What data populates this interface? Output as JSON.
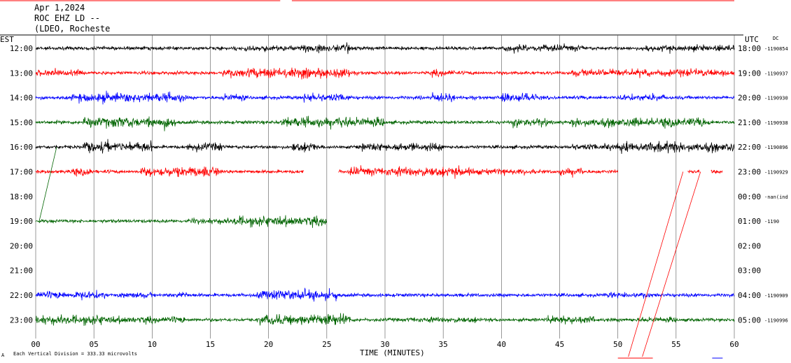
{
  "header": {
    "date": "Apr 1,2024",
    "station": "ROC EHZ LD --",
    "location": "(LDEO, Rocheste"
  },
  "axes": {
    "left_tz": "EST",
    "right_tz": "UTC",
    "dc_label": "DC",
    "x_title": "TIME (MINUTES)",
    "scale_note": "Each Vertical Division = 333.33 microvolts",
    "corner_mark": "A"
  },
  "colors": [
    "#000000",
    "#ff0000",
    "#0000ff",
    "#006400"
  ],
  "chart_data": {
    "type": "line",
    "title": "Apr 1,2024",
    "xlabel": "TIME (MINUTES)",
    "xlim": [
      0,
      60
    ],
    "x_ticks": [
      "00",
      "05",
      "10",
      "15",
      "20",
      "25",
      "30",
      "35",
      "40",
      "45",
      "50",
      "55",
      "60"
    ],
    "rows": [
      {
        "est": "12:00",
        "utc": "18:00",
        "dc": "-1190854",
        "color": "#000000",
        "segments": [
          [
            0,
            60
          ]
        ],
        "activity": [
          [
            17,
            23,
            1.6
          ],
          [
            23,
            27,
            2.2
          ],
          [
            40,
            47,
            1.8
          ],
          [
            52,
            60,
            1.7
          ]
        ]
      },
      {
        "est": "13:00",
        "utc": "19:00",
        "dc": "-1190937",
        "color": "#ff0000",
        "segments": [
          [
            0,
            60
          ]
        ],
        "activity": [
          [
            0,
            4,
            1.8
          ],
          [
            16,
            27,
            2.8
          ],
          [
            34,
            36,
            2.0
          ],
          [
            46,
            60,
            2.0
          ]
        ]
      },
      {
        "est": "14:00",
        "utc": "20:00",
        "dc": "-1190930",
        "color": "#0000ff",
        "segments": [
          [
            0,
            60
          ]
        ],
        "activity": [
          [
            3,
            13,
            2.6
          ],
          [
            16,
            18,
            2.2
          ],
          [
            23,
            27,
            2.5
          ],
          [
            34,
            36,
            2.5
          ],
          [
            40,
            43,
            2.5
          ],
          [
            50,
            54,
            1.8
          ]
        ]
      },
      {
        "est": "15:00",
        "utc": "21:00",
        "dc": "-1190938",
        "color": "#006400",
        "segments": [
          [
            0,
            60
          ]
        ],
        "activity": [
          [
            4,
            12,
            3.0
          ],
          [
            21,
            30,
            2.8
          ],
          [
            41,
            44,
            2.6
          ],
          [
            46,
            58,
            2.6
          ]
        ]
      },
      {
        "est": "16:00",
        "utc": "22:00",
        "dc": "-1190896",
        "color": "#000000",
        "segments": [
          [
            0,
            60
          ]
        ],
        "activity": [
          [
            4,
            10,
            3.0
          ],
          [
            13,
            16,
            2.3
          ],
          [
            22,
            24,
            2.6
          ],
          [
            28,
            35,
            2.3
          ],
          [
            46,
            50,
            2.0
          ],
          [
            50,
            60,
            2.8
          ]
        ]
      },
      {
        "est": "17:00",
        "utc": "23:00",
        "dc": "-1190929",
        "color": "#ff0000",
        "segments": [
          [
            0,
            23
          ],
          [
            26,
            50
          ],
          [
            56,
            57
          ],
          [
            58,
            59
          ]
        ],
        "activity": [
          [
            3,
            5,
            2.0
          ],
          [
            9,
            16,
            2.8
          ],
          [
            27,
            30,
            2.4
          ],
          [
            30,
            38,
            2.7
          ],
          [
            38,
            43,
            1.6
          ],
          [
            45,
            47,
            2.3
          ]
        ]
      },
      {
        "est": "18:00",
        "utc": "00:00",
        "dc": "-nan(ind",
        "color": "#0000ff",
        "segments": [],
        "activity": []
      },
      {
        "est": "19:00",
        "utc": "01:00",
        "dc": "-1190",
        "color": "#006400",
        "segments": [
          [
            0,
            25
          ]
        ],
        "activity": [
          [
            13,
            17,
            1.6
          ],
          [
            17,
            25,
            2.8
          ]
        ]
      },
      {
        "est": "20:00",
        "utc": "02:00",
        "dc": "",
        "color": "#000000",
        "segments": [],
        "activity": []
      },
      {
        "est": "21:00",
        "utc": "03:00",
        "dc": "",
        "color": "#ff0000",
        "segments": [],
        "activity": []
      },
      {
        "est": "22:00",
        "utc": "04:00",
        "dc": "-1190909",
        "color": "#0000ff",
        "segments": [
          [
            0,
            60
          ]
        ],
        "activity": [
          [
            0,
            6,
            2.3
          ],
          [
            7,
            10,
            1.6
          ],
          [
            12,
            13,
            1.8
          ],
          [
            19,
            26,
            2.8
          ],
          [
            49,
            53,
            1.8
          ]
        ]
      },
      {
        "est": "23:00",
        "utc": "05:00",
        "dc": "-1190996",
        "color": "#006400",
        "segments": [
          [
            0,
            60
          ]
        ],
        "activity": [
          [
            0,
            6,
            2.6
          ],
          [
            6,
            13,
            2.0
          ],
          [
            19,
            27,
            3.0
          ],
          [
            32,
            38,
            1.6
          ],
          [
            44,
            48,
            2.4
          ],
          [
            52,
            55,
            1.6
          ]
        ]
      }
    ]
  }
}
